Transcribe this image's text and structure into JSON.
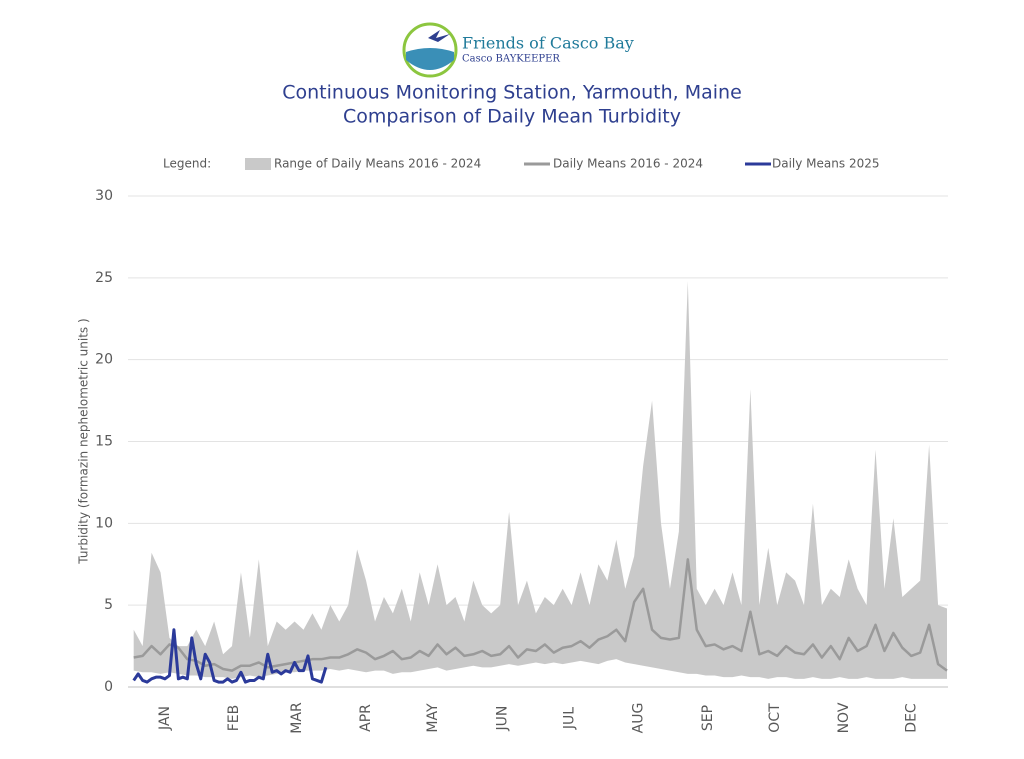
{
  "header": {
    "org": "Friends of Casco Bay",
    "sub": "Casco BAYKEEPER"
  },
  "chart_data": {
    "type": "line",
    "title": "Continuous Monitoring Station, Yarmouth, Maine",
    "subtitle": "Comparison of Daily Mean Turbidity",
    "legend_label": "Legend:",
    "ylabel": "Turbidity (formazin nephelometric units )",
    "ylim": [
      0,
      30
    ],
    "yticks": [
      0,
      5,
      10,
      15,
      20,
      25,
      30
    ],
    "grid": true,
    "xlim": [
      1,
      365
    ],
    "xticks": [
      {
        "value": 15,
        "label": "JAN"
      },
      {
        "value": 46,
        "label": "FEB"
      },
      {
        "value": 74,
        "label": "MAR"
      },
      {
        "value": 105,
        "label": "APR"
      },
      {
        "value": 135,
        "label": "MAY"
      },
      {
        "value": 166,
        "label": "JUN"
      },
      {
        "value": 196,
        "label": "JUL"
      },
      {
        "value": 227,
        "label": "AUG"
      },
      {
        "value": 258,
        "label": "SEP"
      },
      {
        "value": 288,
        "label": "OCT"
      },
      {
        "value": 319,
        "label": "NOV"
      },
      {
        "value": 349,
        "label": "DEC"
      }
    ],
    "x": [
      1,
      5,
      9,
      13,
      17,
      21,
      25,
      29,
      33,
      37,
      41,
      45,
      49,
      53,
      57,
      61,
      65,
      69,
      73,
      77,
      81,
      85,
      89,
      93,
      97,
      101,
      105,
      109,
      113,
      117,
      121,
      125,
      129,
      133,
      137,
      141,
      145,
      149,
      153,
      157,
      161,
      165,
      169,
      173,
      177,
      181,
      185,
      189,
      193,
      197,
      201,
      205,
      209,
      213,
      217,
      221,
      225,
      229,
      233,
      237,
      241,
      245,
      249,
      253,
      257,
      261,
      265,
      269,
      273,
      277,
      281,
      285,
      289,
      293,
      297,
      301,
      305,
      309,
      313,
      317,
      321,
      325,
      329,
      333,
      337,
      341,
      345,
      349,
      353,
      357,
      361,
      365
    ],
    "series": [
      {
        "name": "Range of Daily Means 2016 - 2024",
        "type": "area",
        "color": "#c9c9c9",
        "high": [
          3.5,
          2.5,
          8.2,
          7.0,
          3.0,
          2.5,
          2.5,
          3.5,
          2.5,
          4.0,
          2.0,
          2.5,
          7.0,
          3.0,
          7.8,
          2.5,
          4.0,
          3.5,
          4.0,
          3.5,
          4.5,
          3.5,
          5.0,
          4.0,
          5.0,
          8.4,
          6.5,
          4.0,
          5.5,
          4.5,
          6.0,
          4.0,
          7.0,
          5.0,
          7.5,
          5.0,
          5.5,
          4.0,
          6.5,
          5.0,
          4.5,
          5.0,
          10.7,
          5.0,
          6.5,
          4.5,
          5.5,
          5.0,
          6.0,
          5.0,
          7.0,
          5.0,
          7.5,
          6.5,
          9.0,
          6.0,
          8.0,
          13.5,
          17.5,
          10.0,
          6.0,
          9.5,
          24.8,
          6.0,
          5.0,
          6.0,
          5.0,
          7.0,
          5.0,
          18.2,
          5.0,
          8.5,
          5.0,
          7.0,
          6.5,
          5.0,
          11.2,
          5.0,
          6.0,
          5.5,
          7.8,
          6.0,
          5.0,
          14.5,
          6.0,
          10.3,
          5.5,
          6.0,
          6.5,
          14.8,
          5.0,
          4.8
        ],
        "low": [
          1.0,
          0.9,
          0.9,
          0.8,
          0.9,
          0.8,
          0.7,
          0.7,
          0.6,
          0.6,
          0.6,
          0.5,
          0.6,
          0.7,
          0.6,
          0.7,
          0.8,
          0.9,
          0.9,
          1.0,
          1.0,
          1.0,
          1.1,
          1.0,
          1.1,
          1.0,
          0.9,
          1.0,
          1.0,
          0.8,
          0.9,
          0.9,
          1.0,
          1.1,
          1.2,
          1.0,
          1.1,
          1.2,
          1.3,
          1.2,
          1.2,
          1.3,
          1.4,
          1.3,
          1.4,
          1.5,
          1.4,
          1.5,
          1.4,
          1.5,
          1.6,
          1.5,
          1.4,
          1.6,
          1.7,
          1.5,
          1.4,
          1.3,
          1.2,
          1.1,
          1.0,
          0.9,
          0.8,
          0.8,
          0.7,
          0.7,
          0.6,
          0.6,
          0.7,
          0.6,
          0.6,
          0.5,
          0.6,
          0.6,
          0.5,
          0.5,
          0.6,
          0.5,
          0.5,
          0.6,
          0.5,
          0.5,
          0.6,
          0.5,
          0.5,
          0.5,
          0.6,
          0.5,
          0.5,
          0.5,
          0.5,
          0.5
        ]
      },
      {
        "name": "Daily Means 2016 - 2024",
        "color": "#9a9a9a",
        "values": [
          1.8,
          1.9,
          2.5,
          2.0,
          2.6,
          2.4,
          1.7,
          1.6,
          1.3,
          1.4,
          1.1,
          1.0,
          1.3,
          1.3,
          1.5,
          1.2,
          1.3,
          1.4,
          1.5,
          1.6,
          1.7,
          1.7,
          1.8,
          1.8,
          2.0,
          2.3,
          2.1,
          1.7,
          1.9,
          2.2,
          1.7,
          1.8,
          2.2,
          1.9,
          2.6,
          2.0,
          2.4,
          1.9,
          2.0,
          2.2,
          1.9,
          2.0,
          2.5,
          1.8,
          2.3,
          2.2,
          2.6,
          2.1,
          2.4,
          2.5,
          2.8,
          2.4,
          2.9,
          3.1,
          3.5,
          2.8,
          5.2,
          6.0,
          3.5,
          3.0,
          2.9,
          3.0,
          7.8,
          3.5,
          2.5,
          2.6,
          2.3,
          2.5,
          2.2,
          4.6,
          2.0,
          2.2,
          1.9,
          2.5,
          2.1,
          2.0,
          2.6,
          1.8,
          2.5,
          1.7,
          3.0,
          2.2,
          2.5,
          3.8,
          2.2,
          3.3,
          2.4,
          1.9,
          2.1,
          3.8,
          1.4,
          1.0
        ]
      },
      {
        "name": "Daily Means 2025",
        "color": "#2b3a9a",
        "x": [
          1,
          3,
          5,
          7,
          9,
          11,
          13,
          15,
          17,
          19,
          21,
          23,
          25,
          27,
          29,
          31,
          33,
          35,
          37,
          39,
          41,
          43,
          45,
          47,
          49,
          51,
          53,
          55,
          57,
          59,
          61,
          63,
          65,
          67,
          69,
          71,
          73,
          75,
          77,
          79,
          81,
          83,
          85,
          87
        ],
        "values": [
          0.4,
          0.8,
          0.4,
          0.3,
          0.5,
          0.6,
          0.6,
          0.5,
          0.7,
          3.5,
          0.5,
          0.6,
          0.5,
          3.0,
          1.4,
          0.5,
          2.0,
          1.5,
          0.4,
          0.3,
          0.3,
          0.5,
          0.3,
          0.4,
          0.9,
          0.3,
          0.4,
          0.4,
          0.6,
          0.5,
          2.0,
          0.9,
          1.0,
          0.8,
          1.0,
          0.9,
          1.5,
          1.0,
          1.0,
          1.9,
          0.5,
          0.4,
          0.3,
          1.2
        ]
      }
    ]
  }
}
